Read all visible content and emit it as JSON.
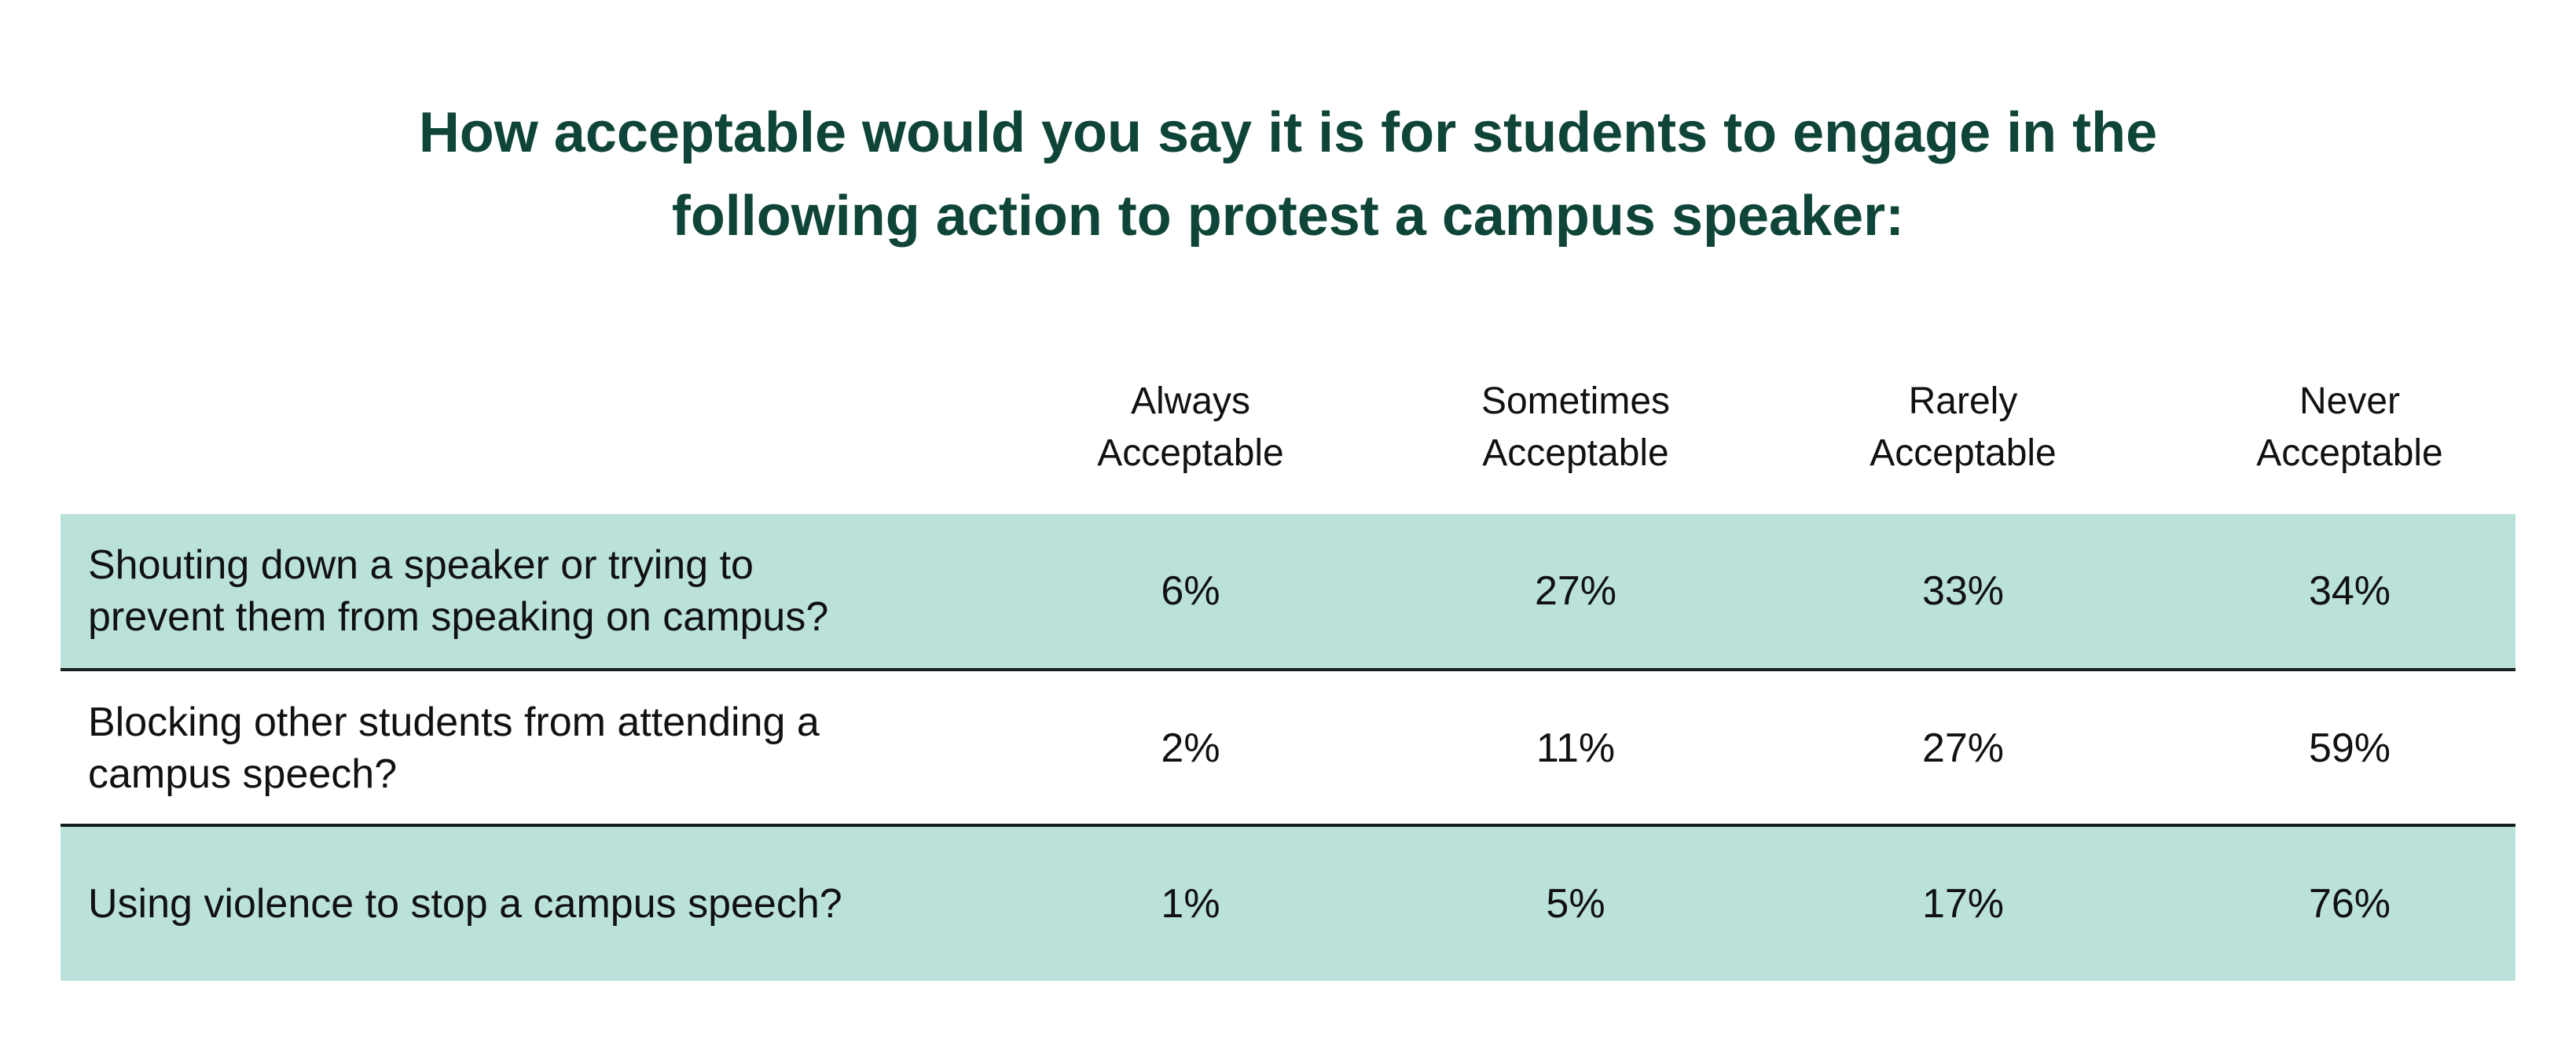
{
  "chart_data": {
    "type": "table",
    "title_lines": [
      "How acceptable would you say it is for students to engage in the",
      "following action to protest a campus speaker:"
    ],
    "columns": [
      {
        "line1": "Always",
        "line2": "Acceptable"
      },
      {
        "line1": "Sometimes",
        "line2": "Acceptable"
      },
      {
        "line1": "Rarely",
        "line2": "Acceptable"
      },
      {
        "line1": "Never",
        "line2": "Acceptable"
      }
    ],
    "rows": [
      {
        "label_lines": [
          "Shouting down a speaker or trying to",
          "prevent them from speaking on campus?"
        ],
        "values": [
          "6%",
          "27%",
          "33%",
          "34%"
        ]
      },
      {
        "label_lines": [
          "Blocking other students from attending a",
          "campus speech?"
        ],
        "values": [
          "2%",
          "11%",
          "27%",
          "59%"
        ]
      },
      {
        "label_lines": [
          "Using violence to stop a campus speech?"
        ],
        "values": [
          "1%",
          "5%",
          "17%",
          "76%"
        ]
      }
    ],
    "colors": {
      "title": "#0f4538",
      "shaded_row": "#bae2da",
      "divider": "#14201d",
      "text": "#111111"
    }
  }
}
